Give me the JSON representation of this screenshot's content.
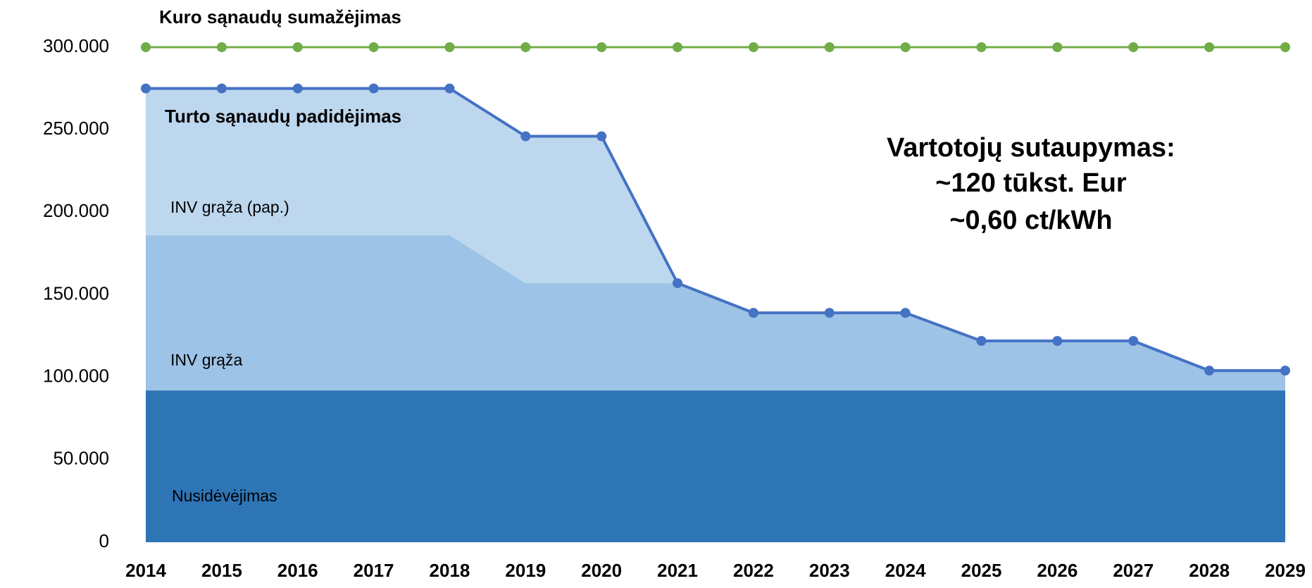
{
  "chart_data": {
    "type": "stacked-area-line",
    "categories": [
      "2014",
      "2015",
      "2016",
      "2017",
      "2018",
      "2019",
      "2020",
      "2021",
      "2022",
      "2023",
      "2024",
      "2025",
      "2026",
      "2027",
      "2028",
      "2029"
    ],
    "series": [
      {
        "name": "Nusidėvėjimas",
        "kind": "area",
        "color": "#2e75b6",
        "values": [
          92000,
          92000,
          92000,
          92000,
          92000,
          92000,
          92000,
          92000,
          92000,
          92000,
          92000,
          92000,
          92000,
          92000,
          92000,
          92000
        ]
      },
      {
        "name": "INV grąža",
        "kind": "area",
        "color": "#9dc3e6",
        "values": [
          94000,
          94000,
          94000,
          94000,
          94000,
          65000,
          65000,
          65000,
          47000,
          47000,
          47000,
          30000,
          30000,
          30000,
          12000,
          12000
        ]
      },
      {
        "name": "INV grąža (pap.)",
        "kind": "area",
        "color": "#bdd7ee",
        "values": [
          89000,
          89000,
          89000,
          89000,
          89000,
          89000,
          89000,
          0,
          0,
          0,
          0,
          0,
          0,
          0,
          0,
          0
        ]
      },
      {
        "name": "Turto sąnaudų padidėjimas",
        "kind": "line",
        "color": "#4472c4",
        "values": [
          275000,
          275000,
          275000,
          275000,
          275000,
          246000,
          246000,
          157000,
          139000,
          139000,
          139000,
          122000,
          122000,
          122000,
          104000,
          104000
        ]
      },
      {
        "name": "Kuro sąnaudų sumažėjimas",
        "kind": "line",
        "color": "#70ad47",
        "values": [
          300000,
          300000,
          300000,
          300000,
          300000,
          300000,
          300000,
          300000,
          300000,
          300000,
          300000,
          300000,
          300000,
          300000,
          300000,
          300000
        ]
      }
    ],
    "annotation": [
      "Vartotojų sutaupymas:",
      "~120 tūkst. Eur",
      "~0,60 ct/kWh"
    ],
    "ylim": [
      0,
      300000
    ],
    "yticks": [
      0,
      {
        "value": 50000,
        "label": "50.000"
      },
      {
        "value": 100000,
        "label": "100.000"
      },
      {
        "value": 150000,
        "label": "150.000"
      },
      {
        "value": 200000,
        "label": "200.000"
      },
      {
        "value": 250000,
        "label": "250.000"
      },
      {
        "value": 300000,
        "label": "300.000"
      }
    ],
    "grid": false
  }
}
